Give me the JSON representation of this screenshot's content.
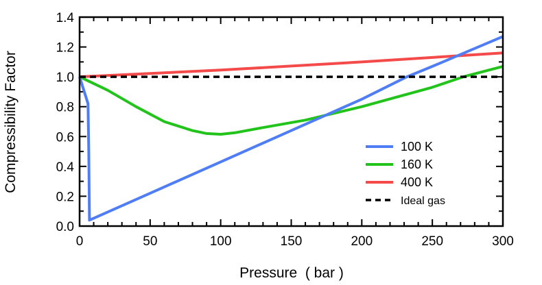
{
  "chart_data": {
    "type": "line",
    "title": "",
    "xlabel": "Pressure  ( bar )",
    "ylabel": "Compressibility Factor",
    "xlim": [
      0,
      300
    ],
    "ylim": [
      0,
      1.4
    ],
    "xticks": [
      0,
      50,
      100,
      150,
      200,
      250,
      300
    ],
    "xtick_labels": [
      "0",
      "50",
      "100",
      "150",
      "200",
      "250",
      "300"
    ],
    "yticks": [
      0,
      0.2,
      0.4,
      0.6,
      0.8,
      1.0,
      1.2,
      1.4
    ],
    "ytick_labels": [
      "0.0",
      "0.2",
      "0.4",
      "0.6",
      "0.8",
      "1.0",
      "1.2",
      "1.4"
    ],
    "grid": false,
    "legend_position": "bottom-right",
    "series": [
      {
        "name": "100 K",
        "color": "#4f7df5",
        "dash": false,
        "x": [
          0,
          6,
          6.5,
          7,
          50,
          100,
          150,
          200,
          232,
          250,
          300
        ],
        "y": [
          1.0,
          0.82,
          0.5,
          0.04,
          0.22,
          0.43,
          0.64,
          0.85,
          1.0,
          1.07,
          1.27
        ]
      },
      {
        "name": "160 K",
        "color": "#22c41c",
        "dash": false,
        "x": [
          0,
          20,
          40,
          60,
          80,
          90,
          100,
          110,
          130,
          160,
          200,
          250,
          272,
          300
        ],
        "y": [
          1.0,
          0.91,
          0.8,
          0.7,
          0.64,
          0.62,
          0.615,
          0.625,
          0.66,
          0.71,
          0.8,
          0.93,
          1.0,
          1.07
        ]
      },
      {
        "name": "400 K",
        "color": "#f44a4a",
        "dash": false,
        "x": [
          0,
          100,
          200,
          300
        ],
        "y": [
          1.0,
          1.045,
          1.1,
          1.16
        ]
      },
      {
        "name": "Ideal gas",
        "color": "#000000",
        "dash": true,
        "x": [
          0,
          300
        ],
        "y": [
          1.0,
          1.0
        ]
      }
    ]
  }
}
